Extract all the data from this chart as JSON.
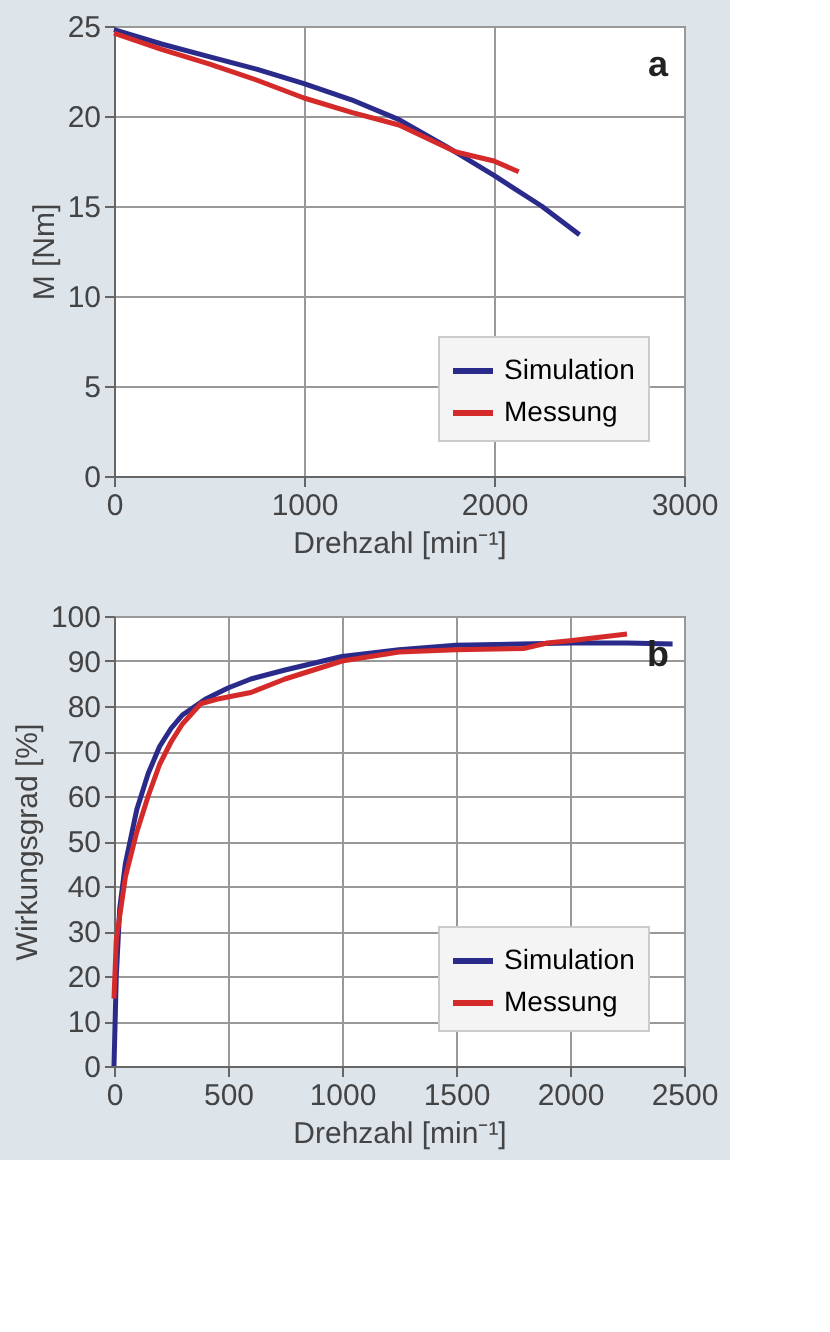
{
  "chart_data": [
    {
      "type": "line",
      "xlabel": "Drehzahl [min⁻¹]",
      "ylabel": "M [Nm]",
      "annotations": [
        "a"
      ],
      "xlim": [
        0,
        3000
      ],
      "xticks": [
        0,
        1000,
        2000,
        3000
      ],
      "ylim": [
        0,
        25
      ],
      "yticks": [
        0,
        5,
        10,
        15,
        20,
        25
      ],
      "grid": true,
      "legend": "bottom right",
      "line_style": "solid",
      "series": [
        {
          "name": "Simulation",
          "color": "#2a2a8a",
          "x": [
            0,
            250,
            500,
            750,
            1000,
            1250,
            1500,
            1750,
            2000,
            2250,
            2450
          ],
          "values": [
            24.8,
            24.0,
            23.3,
            22.6,
            21.8,
            20.9,
            19.8,
            18.3,
            16.7,
            15.0,
            13.4
          ]
        },
        {
          "name": "Messung",
          "color": "#d42a2a",
          "x": [
            0,
            250,
            500,
            750,
            1000,
            1250,
            1500,
            1800,
            2000,
            2130
          ],
          "values": [
            24.6,
            23.7,
            22.9,
            22.0,
            21.0,
            20.2,
            19.5,
            18.0,
            17.5,
            16.9
          ]
        }
      ]
    },
    {
      "type": "line",
      "xlabel": "Drehzahl [min⁻¹]",
      "ylabel": "Wirkungsgrad [%]",
      "annotations": [
        "b"
      ],
      "xlim": [
        0,
        2500
      ],
      "xticks": [
        0,
        500,
        1000,
        1500,
        2000,
        2500
      ],
      "ylim": [
        0,
        100
      ],
      "yticks": [
        0,
        10,
        20,
        30,
        40,
        50,
        60,
        70,
        80,
        90,
        100
      ],
      "grid": true,
      "legend": "bottom right",
      "line_style": "solid",
      "series": [
        {
          "name": "Simulation",
          "color": "#2a2a8a",
          "x": [
            0,
            10,
            25,
            50,
            100,
            150,
            200,
            250,
            300,
            400,
            500,
            600,
            750,
            1000,
            1250,
            1500,
            2000,
            2250,
            2450
          ],
          "values": [
            0,
            20,
            35,
            45,
            57,
            65,
            71,
            75,
            78,
            81.5,
            84,
            86,
            88,
            91,
            92.5,
            93.5,
            94,
            94,
            93.8
          ]
        },
        {
          "name": "Messung",
          "color": "#d42a2a",
          "x": [
            0,
            10,
            50,
            100,
            150,
            200,
            250,
            300,
            380,
            450,
            600,
            750,
            1000,
            1250,
            1500,
            1800,
            1900,
            2000,
            2250
          ],
          "values": [
            15,
            28,
            42,
            52,
            60,
            67,
            72,
            76,
            80.5,
            81.5,
            83,
            86,
            90,
            92,
            92.5,
            92.8,
            94,
            94.5,
            96
          ]
        }
      ]
    }
  ]
}
